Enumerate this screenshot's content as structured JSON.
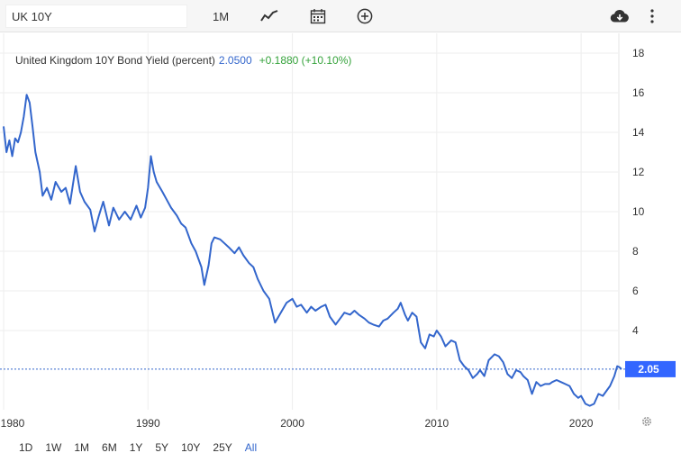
{
  "toolbar": {
    "symbol_value": "UK 10Y",
    "period_label": "1M",
    "icons": [
      "line-style-icon",
      "calendar-icon",
      "add-icon",
      "download-cloud-icon",
      "more-vertical-icon"
    ]
  },
  "header": {
    "name": "United Kingdom 10Y Bond Yield (percent)",
    "value": "2.0500",
    "change": "+0.1880 (+10.10%)"
  },
  "range_buttons": [
    "1D",
    "1W",
    "1M",
    "6M",
    "1Y",
    "5Y",
    "10Y",
    "25Y",
    "All"
  ],
  "active_range": "All",
  "colors": {
    "line": "#3366cc",
    "change_positive": "#36a33c",
    "badge": "#3366ff",
    "grid": "#eeeeee"
  },
  "chart_data": {
    "type": "line",
    "title": "United Kingdom 10Y Bond Yield (percent)",
    "xlabel": "",
    "ylabel": "",
    "xlim": [
      1980,
      2022.8
    ],
    "ylim": [
      0,
      19
    ],
    "x_ticks": [
      "1980",
      "1990",
      "2000",
      "2010",
      "2020"
    ],
    "y_ticks": [
      "4",
      "6",
      "8",
      "10",
      "12",
      "14",
      "16",
      "18"
    ],
    "grid": true,
    "y_axis_position": "right",
    "last_value_label": "2.05",
    "series": [
      {
        "points": [
          [
            1980.0,
            14.3
          ],
          [
            1980.2,
            13.0
          ],
          [
            1980.4,
            13.6
          ],
          [
            1980.6,
            12.8
          ],
          [
            1980.8,
            13.7
          ],
          [
            1981.0,
            13.5
          ],
          [
            1981.2,
            14.0
          ],
          [
            1981.4,
            14.8
          ],
          [
            1981.6,
            15.9
          ],
          [
            1981.8,
            15.5
          ],
          [
            1982.0,
            14.3
          ],
          [
            1982.2,
            13.0
          ],
          [
            1982.5,
            12.0
          ],
          [
            1982.7,
            10.8
          ],
          [
            1983.0,
            11.2
          ],
          [
            1983.3,
            10.6
          ],
          [
            1983.6,
            11.5
          ],
          [
            1984.0,
            11.0
          ],
          [
            1984.3,
            11.2
          ],
          [
            1984.6,
            10.4
          ],
          [
            1985.0,
            12.3
          ],
          [
            1985.3,
            11.0
          ],
          [
            1985.6,
            10.5
          ],
          [
            1986.0,
            10.1
          ],
          [
            1986.3,
            9.0
          ],
          [
            1986.6,
            9.8
          ],
          [
            1986.9,
            10.5
          ],
          [
            1987.3,
            9.3
          ],
          [
            1987.6,
            10.2
          ],
          [
            1988.0,
            9.6
          ],
          [
            1988.4,
            10.0
          ],
          [
            1988.8,
            9.6
          ],
          [
            1989.2,
            10.3
          ],
          [
            1989.5,
            9.7
          ],
          [
            1989.8,
            10.2
          ],
          [
            1990.0,
            11.2
          ],
          [
            1990.2,
            12.8
          ],
          [
            1990.4,
            12.0
          ],
          [
            1990.6,
            11.5
          ],
          [
            1991.0,
            11.0
          ],
          [
            1991.3,
            10.6
          ],
          [
            1991.6,
            10.2
          ],
          [
            1992.0,
            9.8
          ],
          [
            1992.3,
            9.4
          ],
          [
            1992.6,
            9.2
          ],
          [
            1993.0,
            8.4
          ],
          [
            1993.3,
            8.0
          ],
          [
            1993.7,
            7.2
          ],
          [
            1993.9,
            6.3
          ],
          [
            1994.2,
            7.3
          ],
          [
            1994.4,
            8.4
          ],
          [
            1994.6,
            8.7
          ],
          [
            1995.0,
            8.6
          ],
          [
            1995.3,
            8.4
          ],
          [
            1995.6,
            8.2
          ],
          [
            1996.0,
            7.9
          ],
          [
            1996.3,
            8.2
          ],
          [
            1996.6,
            7.8
          ],
          [
            1997.0,
            7.4
          ],
          [
            1997.3,
            7.2
          ],
          [
            1997.6,
            6.6
          ],
          [
            1998.0,
            6.0
          ],
          [
            1998.4,
            5.6
          ],
          [
            1998.8,
            4.4
          ],
          [
            1999.2,
            4.9
          ],
          [
            1999.6,
            5.4
          ],
          [
            2000.0,
            5.6
          ],
          [
            2000.3,
            5.2
          ],
          [
            2000.6,
            5.3
          ],
          [
            2001.0,
            4.9
          ],
          [
            2001.3,
            5.2
          ],
          [
            2001.6,
            5.0
          ],
          [
            2002.0,
            5.2
          ],
          [
            2002.3,
            5.3
          ],
          [
            2002.6,
            4.7
          ],
          [
            2003.0,
            4.3
          ],
          [
            2003.3,
            4.6
          ],
          [
            2003.6,
            4.9
          ],
          [
            2004.0,
            4.8
          ],
          [
            2004.3,
            5.0
          ],
          [
            2004.6,
            4.8
          ],
          [
            2005.0,
            4.6
          ],
          [
            2005.3,
            4.4
          ],
          [
            2005.6,
            4.3
          ],
          [
            2006.0,
            4.2
          ],
          [
            2006.3,
            4.5
          ],
          [
            2006.6,
            4.6
          ],
          [
            2007.0,
            4.9
          ],
          [
            2007.3,
            5.1
          ],
          [
            2007.5,
            5.4
          ],
          [
            2007.8,
            4.8
          ],
          [
            2008.0,
            4.5
          ],
          [
            2008.3,
            4.9
          ],
          [
            2008.6,
            4.7
          ],
          [
            2008.9,
            3.4
          ],
          [
            2009.2,
            3.1
          ],
          [
            2009.5,
            3.8
          ],
          [
            2009.8,
            3.7
          ],
          [
            2010.0,
            4.0
          ],
          [
            2010.3,
            3.7
          ],
          [
            2010.6,
            3.2
          ],
          [
            2011.0,
            3.5
          ],
          [
            2011.3,
            3.4
          ],
          [
            2011.6,
            2.5
          ],
          [
            2011.9,
            2.2
          ],
          [
            2012.2,
            2.0
          ],
          [
            2012.5,
            1.6
          ],
          [
            2012.8,
            1.8
          ],
          [
            2013.0,
            2.0
          ],
          [
            2013.3,
            1.7
          ],
          [
            2013.6,
            2.5
          ],
          [
            2014.0,
            2.8
          ],
          [
            2014.3,
            2.7
          ],
          [
            2014.6,
            2.4
          ],
          [
            2014.9,
            1.8
          ],
          [
            2015.2,
            1.6
          ],
          [
            2015.5,
            2.0
          ],
          [
            2015.8,
            1.9
          ],
          [
            2016.0,
            1.7
          ],
          [
            2016.3,
            1.5
          ],
          [
            2016.6,
            0.8
          ],
          [
            2016.9,
            1.4
          ],
          [
            2017.2,
            1.2
          ],
          [
            2017.5,
            1.3
          ],
          [
            2017.8,
            1.3
          ],
          [
            2018.0,
            1.4
          ],
          [
            2018.3,
            1.5
          ],
          [
            2018.6,
            1.4
          ],
          [
            2018.9,
            1.3
          ],
          [
            2019.2,
            1.2
          ],
          [
            2019.5,
            0.8
          ],
          [
            2019.8,
            0.6
          ],
          [
            2020.0,
            0.7
          ],
          [
            2020.3,
            0.3
          ],
          [
            2020.6,
            0.2
          ],
          [
            2020.9,
            0.3
          ],
          [
            2021.2,
            0.8
          ],
          [
            2021.5,
            0.7
          ],
          [
            2021.8,
            1.0
          ],
          [
            2022.0,
            1.2
          ],
          [
            2022.3,
            1.7
          ],
          [
            2022.5,
            2.2
          ],
          [
            2022.65,
            2.15
          ],
          [
            2022.8,
            2.05
          ]
        ]
      }
    ]
  }
}
